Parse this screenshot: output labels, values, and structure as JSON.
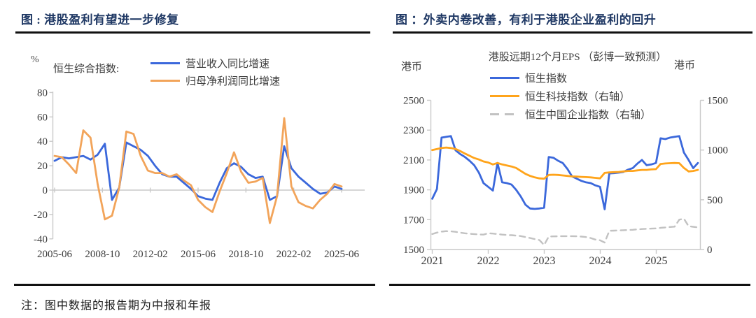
{
  "left_panel": {
    "title": "图 : 港股盈利有望进一步修复",
    "note": "注：图中数据的报告期为中报和年报",
    "unit_label": "%",
    "series_group_label": "恒生综合指数:",
    "legend": [
      {
        "label": "营业收入同比增速",
        "color": "#3B68DB",
        "style": "solid"
      },
      {
        "label": "归母净利润同比增速",
        "color": "#F2A45A",
        "style": "solid"
      }
    ]
  },
  "right_panel": {
    "title": "图 ：外卖内卷改善，有利于港股企业盈利的回升",
    "chart_title": "港股远期12个月EPS （彭博一致预测）",
    "left_axis_unit": "港币",
    "right_axis_unit": "港币",
    "legend": [
      {
        "label": "恒生指数",
        "color": "#3B68DB",
        "style": "solid"
      },
      {
        "label": "恒生科技指数（右轴）",
        "color": "#FFA41B",
        "style": "solid"
      },
      {
        "label": "恒生中国企业指数（右轴）",
        "color": "#C2C2C2",
        "style": "dashed"
      }
    ]
  },
  "colors": {
    "title_navy": "#1F3864",
    "blue_line": "#3B68DB",
    "soft_orange": "#F2A45A",
    "amber_orange": "#FFA41B",
    "gray_line": "#C2C2C2",
    "axis_gray": "#C9C9C9",
    "tick_text": "#3d3d3d"
  },
  "chart_data": [
    {
      "type": "line",
      "title": "港股盈利有望进一步修复",
      "ylabel": "%",
      "ylim": [
        -40,
        80
      ],
      "yticks": [
        80,
        60,
        40,
        20,
        0,
        -20,
        -40
      ],
      "x_tick_labels": [
        "2005-06",
        "2008-10",
        "2012-02",
        "2015-06",
        "2018-10",
        "2022-02",
        "2025-06"
      ],
      "x_periods": [
        "2005-06",
        "2005-12",
        "2006-06",
        "2006-12",
        "2007-06",
        "2007-12",
        "2008-06",
        "2008-12",
        "2009-06",
        "2009-12",
        "2010-06",
        "2010-12",
        "2011-06",
        "2011-12",
        "2012-06",
        "2012-12",
        "2013-06",
        "2013-12",
        "2014-06",
        "2014-12",
        "2015-06",
        "2015-12",
        "2016-06",
        "2016-12",
        "2017-06",
        "2017-12",
        "2018-06",
        "2018-12",
        "2019-06",
        "2019-12",
        "2020-06",
        "2020-12",
        "2021-06",
        "2021-12",
        "2022-06",
        "2022-12",
        "2023-06",
        "2023-12",
        "2024-06",
        "2024-12",
        "2025-06"
      ],
      "grid": false,
      "legend_position": "top",
      "series": [
        {
          "name": "营业收入同比增速",
          "color": "#3B68DB",
          "style": "solid",
          "values": [
            24,
            27,
            26,
            27,
            28,
            25,
            29,
            38,
            -8,
            2,
            39,
            36,
            33,
            28,
            20,
            13,
            11,
            11,
            6,
            1,
            -5,
            -7,
            -8,
            6,
            18,
            22,
            19,
            13,
            10,
            11,
            -8,
            -5,
            36,
            18,
            11,
            6,
            1,
            -3,
            -2,
            3,
            1
          ]
        },
        {
          "name": "归母净利润同比增速",
          "color": "#F2A45A",
          "style": "solid",
          "values": [
            28,
            27,
            21,
            14,
            49,
            43,
            5,
            -24,
            -21,
            2,
            48,
            46,
            28,
            16,
            14,
            14,
            11,
            13,
            8,
            4,
            -8,
            -14,
            -18,
            -1,
            14,
            31,
            15,
            6,
            7,
            10,
            -27,
            -5,
            59,
            3,
            -10,
            -13,
            -15,
            -8,
            -3,
            5,
            3
          ]
        }
      ]
    },
    {
      "type": "line",
      "title": "港股远期12个月EPS （彭博一致预测）",
      "left_axis_label": "港币",
      "right_axis_label": "港币",
      "left_ylim": [
        1500,
        2500
      ],
      "left_yticks": [
        2500,
        2300,
        2100,
        1900,
        1700,
        1500
      ],
      "right_ylim": [
        0,
        1500
      ],
      "right_yticks": [
        1500,
        1000,
        500,
        0
      ],
      "x_tick_labels": [
        "2021",
        "2022",
        "2023",
        "2024",
        "2025"
      ],
      "x_start": "2021-01",
      "x_interval": "monthly",
      "grid": false,
      "legend_position": "top",
      "series": [
        {
          "name": "恒生指数",
          "axis": "left",
          "color": "#3B68DB",
          "style": "solid",
          "values": [
            1840,
            1905,
            2250,
            2255,
            2260,
            2165,
            2140,
            2120,
            2095,
            2065,
            2015,
            1945,
            1920,
            1895,
            2080,
            1950,
            1945,
            1935,
            1900,
            1855,
            1800,
            1775,
            1772,
            1775,
            1780,
            2120,
            2115,
            2095,
            2080,
            2040,
            1990,
            1975,
            1960,
            1950,
            1945,
            1930,
            1920,
            1770,
            2010,
            2012,
            2015,
            2020,
            2035,
            2045,
            2075,
            2100,
            2065,
            2070,
            2080,
            2245,
            2240,
            2250,
            2255,
            2260,
            2150,
            2100,
            2045,
            2080
          ]
        },
        {
          "name": "恒生科技指数（右轴）",
          "axis": "right",
          "color": "#FFA41B",
          "style": "solid",
          "values": [
            1000,
            1010,
            1020,
            1025,
            1020,
            1010,
            990,
            965,
            942,
            920,
            905,
            885,
            875,
            855,
            870,
            855,
            845,
            835,
            820,
            790,
            760,
            740,
            725,
            715,
            712,
            750,
            752,
            750,
            745,
            740,
            735,
            733,
            730,
            728,
            725,
            720,
            715,
            770,
            775,
            778,
            780,
            785,
            790,
            790,
            795,
            800,
            800,
            805,
            808,
            860,
            865,
            868,
            870,
            868,
            820,
            785,
            790,
            800
          ]
        },
        {
          "name": "恒生中国企业指数（右轴）",
          "axis": "right",
          "color": "#C2C2C2",
          "style": "dashed",
          "values": [
            155,
            170,
            180,
            185,
            183,
            178,
            170,
            163,
            158,
            155,
            152,
            150,
            164,
            160,
            155,
            150,
            146,
            144,
            140,
            135,
            125,
            115,
            105,
            95,
            45,
            130,
            132,
            133,
            134,
            134,
            134,
            133,
            130,
            125,
            115,
            100,
            93,
            70,
            188,
            190,
            192,
            194,
            196,
            198,
            202,
            206,
            208,
            210,
            212,
            218,
            222,
            226,
            230,
            300,
            310,
            235,
            228,
            222
          ]
        }
      ]
    }
  ]
}
